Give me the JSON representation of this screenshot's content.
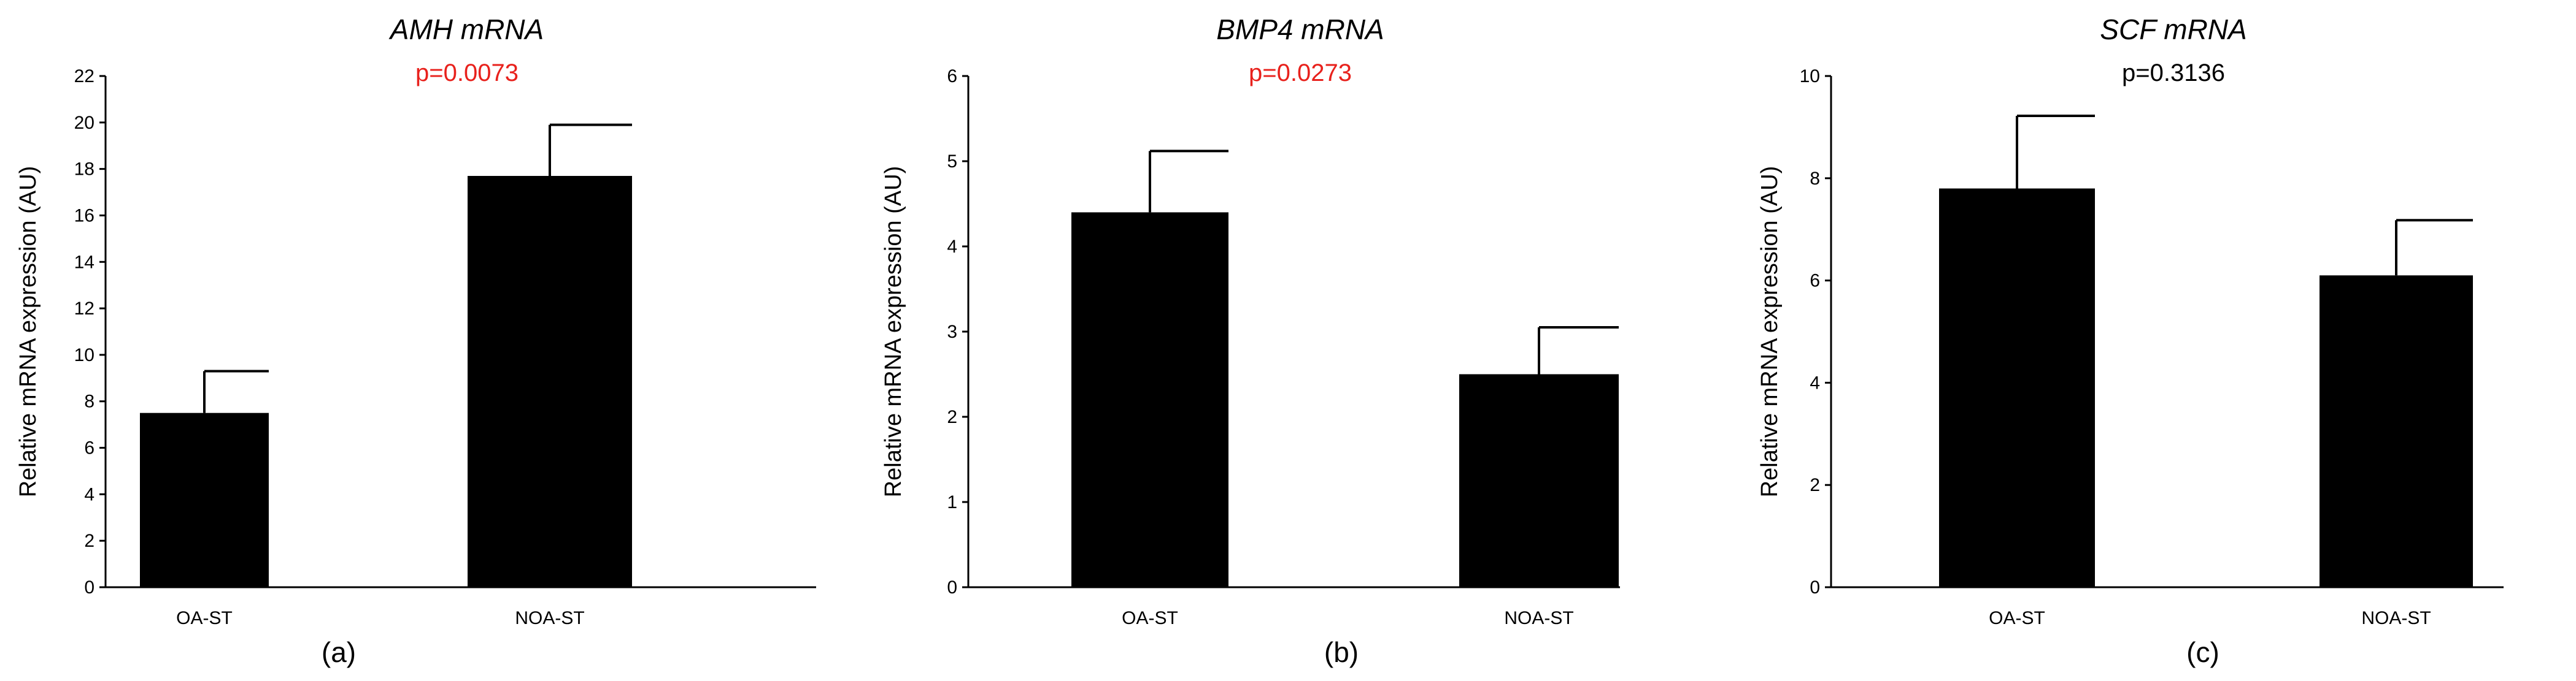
{
  "chart_data": [
    {
      "type": "bar",
      "title": "AMH mRNA",
      "annotation": "p=0.0073",
      "annotation_color": "#e8211c",
      "ylabel": "Relative mRNA expression (AU)",
      "xlabel": "",
      "panel_label": "(a)",
      "categories": [
        "OA-ST",
        "NOA-ST"
      ],
      "values": [
        7.5,
        17.7
      ],
      "errors": [
        1.8,
        2.2
      ],
      "ylim": [
        0,
        22
      ],
      "yticks": [
        0,
        2,
        4,
        6,
        8,
        10,
        12,
        14,
        16,
        18,
        20,
        22
      ],
      "bar_color": "#000000",
      "grid": false
    },
    {
      "type": "bar",
      "title": "BMP4 mRNA",
      "annotation": "p=0.0273",
      "annotation_color": "#e8211c",
      "ylabel": "Relative mRNA expression (AU)",
      "xlabel": "",
      "panel_label": "(b)",
      "categories": [
        "OA-ST",
        "NOA-ST"
      ],
      "values": [
        4.4,
        2.5
      ],
      "errors": [
        0.72,
        0.55
      ],
      "ylim": [
        0,
        6
      ],
      "yticks": [
        0,
        1,
        2,
        3,
        4,
        5,
        6
      ],
      "bar_color": "#000000",
      "grid": false
    },
    {
      "type": "bar",
      "title": "SCF mRNA",
      "annotation": "p=0.3136",
      "annotation_color": "#000000",
      "ylabel": "Relative mRNA expression (AU)",
      "xlabel": "",
      "panel_label": "(c)",
      "categories": [
        "OA-ST",
        "NOA-ST"
      ],
      "values": [
        7.8,
        6.1
      ],
      "errors": [
        1.42,
        1.08
      ],
      "ylim": [
        0,
        10
      ],
      "yticks": [
        0,
        2,
        4,
        6,
        8,
        10
      ],
      "bar_color": "#000000",
      "grid": false
    }
  ]
}
